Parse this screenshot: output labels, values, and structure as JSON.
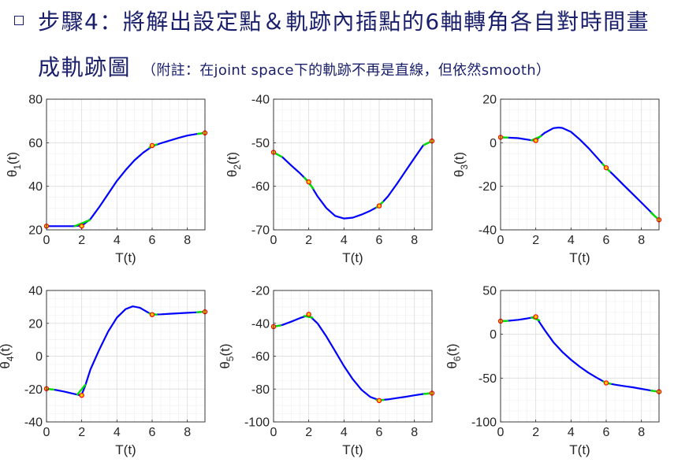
{
  "header": {
    "line1": "步驟4：將解出設定點＆軌跡內插點的6軸轉角各自對時間畫",
    "line2_main": "成軌跡圖",
    "line2_note": "（附註：在joint space下的軌跡不再是直線，但依然smooth）"
  },
  "colors": {
    "curve": "#0000ff",
    "blend": "#00e000",
    "point": "#ff0000",
    "text": "#1a1f6b"
  },
  "chart_data": [
    {
      "type": "line",
      "xlabel": "T(t)",
      "ylabel_sym": "θ",
      "ylabel_sub": "1",
      "ylabel_suf": "(t)",
      "xlim": [
        0,
        9
      ],
      "ylim": [
        20,
        80
      ],
      "xticks": [
        0,
        2,
        4,
        6,
        8
      ],
      "yticks": [
        20,
        40,
        60,
        80
      ],
      "grid": true,
      "setpoints": [
        [
          0,
          21.7
        ],
        [
          2,
          21.7
        ],
        [
          6,
          58.7
        ],
        [
          9,
          64.5
        ]
      ],
      "curve": [
        [
          0,
          21.7
        ],
        [
          1.5,
          21.7
        ],
        [
          2,
          21.9
        ],
        [
          2.5,
          25
        ],
        [
          3,
          30.5
        ],
        [
          3.5,
          36.5
        ],
        [
          4,
          42.5
        ],
        [
          4.5,
          47.5
        ],
        [
          5,
          52
        ],
        [
          5.5,
          55.5
        ],
        [
          6,
          58.3
        ],
        [
          6.5,
          59.8
        ],
        [
          7,
          61
        ],
        [
          7.5,
          62.2
        ],
        [
          8,
          63.3
        ],
        [
          8.5,
          64
        ],
        [
          9,
          64.5
        ]
      ],
      "blends": [
        [
          [
            1.6,
            21.7
          ],
          [
            2.45,
            24.5
          ]
        ],
        [
          [
            5.85,
            57.8
          ],
          [
            6.25,
            59.2
          ]
        ],
        [
          [
            8.6,
            64.1
          ],
          [
            9,
            64.5
          ]
        ]
      ]
    },
    {
      "type": "line",
      "xlabel": "T(t)",
      "ylabel_sym": "θ",
      "ylabel_sub": "2",
      "ylabel_suf": "(t)",
      "xlim": [
        0,
        9
      ],
      "ylim": [
        -70,
        -40
      ],
      "xticks": [
        0,
        2,
        4,
        6,
        8
      ],
      "yticks": [
        -70,
        -60,
        -50,
        -40
      ],
      "grid": true,
      "setpoints": [
        [
          0,
          -52.2
        ],
        [
          2,
          -59
        ],
        [
          6,
          -64.5
        ],
        [
          9,
          -49.6
        ]
      ],
      "curve": [
        [
          0,
          -52.2
        ],
        [
          0.5,
          -53.3
        ],
        [
          1,
          -55.2
        ],
        [
          1.5,
          -57
        ],
        [
          2,
          -59
        ],
        [
          2.5,
          -62.3
        ],
        [
          3,
          -65
        ],
        [
          3.5,
          -66.8
        ],
        [
          4,
          -67.4
        ],
        [
          4.5,
          -67.2
        ],
        [
          5,
          -66.5
        ],
        [
          5.5,
          -65.6
        ],
        [
          6,
          -64.5
        ],
        [
          6.5,
          -62.3
        ],
        [
          7,
          -59.5
        ],
        [
          7.5,
          -56.5
        ],
        [
          8,
          -53.5
        ],
        [
          8.5,
          -50.6
        ],
        [
          9,
          -49.6
        ]
      ],
      "blends": [
        [
          [
            0,
            -52.2
          ],
          [
            0.45,
            -53.2
          ]
        ],
        [
          [
            1.75,
            -58
          ],
          [
            2.25,
            -60.5
          ]
        ],
        [
          [
            5.85,
            -64.9
          ],
          [
            6.2,
            -63.6
          ]
        ],
        [
          [
            8.55,
            -50.5
          ],
          [
            9,
            -49.6
          ]
        ]
      ]
    },
    {
      "type": "line",
      "xlabel": "T(t)",
      "ylabel_sym": "θ",
      "ylabel_sub": "3",
      "ylabel_suf": "(t)",
      "xlim": [
        0,
        9
      ],
      "ylim": [
        -40,
        20
      ],
      "xticks": [
        0,
        2,
        4,
        6,
        8
      ],
      "yticks": [
        -40,
        -20,
        0,
        20
      ],
      "grid": true,
      "setpoints": [
        [
          0,
          2.5
        ],
        [
          2,
          1
        ],
        [
          6,
          -11.5
        ],
        [
          9,
          -35.4
        ]
      ],
      "curve": [
        [
          0,
          2.5
        ],
        [
          1,
          2.1
        ],
        [
          1.8,
          1.1
        ],
        [
          2,
          1.2
        ],
        [
          2.5,
          4.5
        ],
        [
          3,
          6.7
        ],
        [
          3.3,
          7
        ],
        [
          3.5,
          6.8
        ],
        [
          4,
          5
        ],
        [
          4.5,
          1.5
        ],
        [
          5,
          -2.5
        ],
        [
          5.5,
          -7
        ],
        [
          6,
          -11.5
        ],
        [
          6.5,
          -15.5
        ],
        [
          7,
          -19.5
        ],
        [
          7.5,
          -23.5
        ],
        [
          8,
          -27.5
        ],
        [
          8.5,
          -31.5
        ],
        [
          8.8,
          -34
        ],
        [
          9,
          -35.4
        ]
      ],
      "blends": [
        [
          [
            0,
            2.5
          ],
          [
            0.4,
            2.4
          ]
        ],
        [
          [
            1.75,
            1.1
          ],
          [
            2.3,
            3
          ]
        ],
        [
          [
            5.8,
            -9.8
          ],
          [
            6.2,
            -13.2
          ]
        ],
        [
          [
            8.55,
            -32.2
          ],
          [
            9,
            -35.4
          ]
        ]
      ]
    },
    {
      "type": "line",
      "xlabel": "T(t)",
      "ylabel_sym": "θ",
      "ylabel_sub": "4",
      "ylabel_suf": "(t)",
      "xlim": [
        0,
        9
      ],
      "ylim": [
        -40,
        40
      ],
      "xticks": [
        0,
        2,
        4,
        6,
        8
      ],
      "yticks": [
        -40,
        -20,
        0,
        20,
        40
      ],
      "grid": true,
      "setpoints": [
        [
          0,
          -19.8
        ],
        [
          2,
          -23.8
        ],
        [
          6,
          25.3
        ],
        [
          9,
          27
        ]
      ],
      "curve": [
        [
          0,
          -19.8
        ],
        [
          0.5,
          -20.5
        ],
        [
          1,
          -21.5
        ],
        [
          1.5,
          -22.8
        ],
        [
          1.9,
          -23.7
        ],
        [
          2,
          -23.3
        ],
        [
          2.2,
          -18
        ],
        [
          2.5,
          -8
        ],
        [
          3,
          4
        ],
        [
          3.5,
          15
        ],
        [
          4,
          23.5
        ],
        [
          4.5,
          28.7
        ],
        [
          4.9,
          30.3
        ],
        [
          5.3,
          29.5
        ],
        [
          5.7,
          27
        ],
        [
          6,
          25.3
        ],
        [
          6.5,
          25.5
        ],
        [
          7,
          25.8
        ],
        [
          7.5,
          26.1
        ],
        [
          8,
          26.4
        ],
        [
          8.5,
          26.7
        ],
        [
          9,
          27
        ]
      ],
      "blends": [
        [
          [
            0,
            -19.8
          ],
          [
            0.4,
            -20.3
          ]
        ],
        [
          [
            1.75,
            -23.3
          ],
          [
            2.2,
            -17.5
          ]
        ],
        [
          [
            5.85,
            26
          ],
          [
            6.25,
            25.3
          ]
        ],
        [
          [
            8.55,
            26.8
          ],
          [
            9,
            27
          ]
        ]
      ]
    },
    {
      "type": "line",
      "xlabel": "T(t)",
      "ylabel_sym": "θ",
      "ylabel_sub": "5",
      "ylabel_suf": "(t)",
      "xlim": [
        0,
        9
      ],
      "ylim": [
        -100,
        -20
      ],
      "xticks": [
        0,
        2,
        4,
        6,
        8
      ],
      "yticks": [
        -100,
        -80,
        -60,
        -40,
        -20
      ],
      "grid": true,
      "setpoints": [
        [
          0,
          -42
        ],
        [
          2,
          -34.5
        ],
        [
          6,
          -87
        ],
        [
          9,
          -82.5
        ]
      ],
      "curve": [
        [
          0,
          -42
        ],
        [
          0.5,
          -41
        ],
        [
          1,
          -39
        ],
        [
          1.5,
          -36.8
        ],
        [
          2,
          -35
        ],
        [
          2.5,
          -40
        ],
        [
          3,
          -48
        ],
        [
          3.5,
          -57
        ],
        [
          4,
          -66
        ],
        [
          4.5,
          -74
        ],
        [
          5,
          -80.5
        ],
        [
          5.5,
          -84.8
        ],
        [
          6,
          -86.8
        ],
        [
          6.5,
          -86.3
        ],
        [
          7,
          -85.5
        ],
        [
          7.5,
          -84.7
        ],
        [
          8,
          -83.8
        ],
        [
          8.5,
          -83
        ],
        [
          9,
          -82.5
        ]
      ],
      "blends": [
        [
          [
            0,
            -42
          ],
          [
            0.4,
            -41.3
          ]
        ],
        [
          [
            1.75,
            -35.5
          ],
          [
            2.2,
            -36.5
          ]
        ],
        [
          [
            5.85,
            -86.6
          ],
          [
            6.25,
            -86.7
          ]
        ],
        [
          [
            8.55,
            -83
          ],
          [
            9,
            -82.5
          ]
        ]
      ]
    },
    {
      "type": "line",
      "xlabel": "T(t)",
      "ylabel_sym": "θ",
      "ylabel_sub": "6",
      "ylabel_suf": "(t)",
      "xlim": [
        0,
        9
      ],
      "ylim": [
        -100,
        50
      ],
      "xticks": [
        0,
        2,
        4,
        6,
        8
      ],
      "yticks": [
        -100,
        -50,
        0,
        50
      ],
      "grid": true,
      "setpoints": [
        [
          0,
          15
        ],
        [
          2,
          20
        ],
        [
          6,
          -55.5
        ],
        [
          9,
          -65.5
        ]
      ],
      "curve": [
        [
          0,
          15
        ],
        [
          0.5,
          15.5
        ],
        [
          1,
          16.5
        ],
        [
          1.5,
          18
        ],
        [
          1.9,
          19.5
        ],
        [
          2.1,
          17
        ],
        [
          2.5,
          5
        ],
        [
          3,
          -9
        ],
        [
          3.5,
          -20
        ],
        [
          4,
          -29
        ],
        [
          4.5,
          -37
        ],
        [
          5,
          -44
        ],
        [
          5.5,
          -50
        ],
        [
          6,
          -55.5
        ],
        [
          6.5,
          -57.5
        ],
        [
          7,
          -59
        ],
        [
          7.5,
          -60.5
        ],
        [
          8,
          -62.3
        ],
        [
          8.5,
          -64
        ],
        [
          9,
          -65.5
        ]
      ],
      "blends": [
        [
          [
            0,
            15
          ],
          [
            0.4,
            15.2
          ]
        ],
        [
          [
            1.75,
            19.3
          ],
          [
            2.2,
            16
          ]
        ],
        [
          [
            5.85,
            -54
          ],
          [
            6.25,
            -56.5
          ]
        ],
        [
          [
            8.55,
            -64.3
          ],
          [
            9,
            -65.5
          ]
        ]
      ]
    }
  ]
}
